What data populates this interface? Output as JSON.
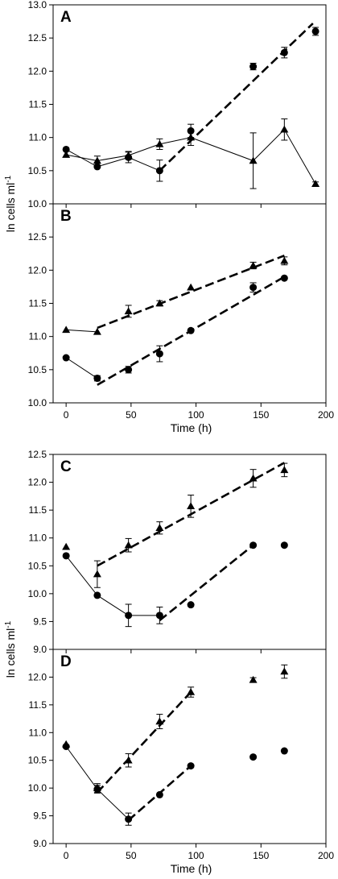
{
  "chart_data": [
    {
      "type": "line",
      "panel": "A",
      "ylabel": "ln cells ml",
      "ylabel_sup": "-1",
      "xlim": [
        -10,
        200
      ],
      "ylim": [
        10.0,
        13.0
      ],
      "yticks": [
        "10.0",
        "10.5",
        "11.0",
        "11.5",
        "12.0",
        "12.5",
        "13.0"
      ],
      "series": [
        {
          "marker": "circle",
          "points": [
            {
              "x": 0,
              "y": 10.82
            },
            {
              "x": 24,
              "y": 10.56
            },
            {
              "x": 48,
              "y": 10.7,
              "err": 0.08
            },
            {
              "x": 72,
              "y": 10.5,
              "err": 0.16
            },
            {
              "x": 96,
              "y": 11.1,
              "err": 0.1
            },
            {
              "x": 144,
              "y": 12.07,
              "err": 0.05
            },
            {
              "x": 168,
              "y": 12.28,
              "err": 0.08
            },
            {
              "x": 192,
              "y": 12.6,
              "err": 0.06
            }
          ],
          "line": "solid",
          "line_points": [
            [
              0,
              10.82
            ],
            [
              24,
              10.56
            ],
            [
              48,
              10.7
            ],
            [
              72,
              10.5
            ]
          ],
          "fit": [
            [
              72,
              10.5
            ],
            [
              190,
              12.72
            ]
          ]
        },
        {
          "marker": "triangle",
          "points": [
            {
              "x": 0,
              "y": 10.74
            },
            {
              "x": 24,
              "y": 10.65,
              "err": 0.07
            },
            {
              "x": 48,
              "y": 10.73,
              "err": 0.06
            },
            {
              "x": 72,
              "y": 10.9,
              "err": 0.08
            },
            {
              "x": 96,
              "y": 11.0,
              "err": 0.12
            },
            {
              "x": 144,
              "y": 10.65,
              "err": 0.42
            },
            {
              "x": 168,
              "y": 11.12,
              "err": 0.16
            },
            {
              "x": 192,
              "y": 10.3,
              "err": 0.03
            }
          ],
          "line": "solid",
          "line_points": [
            [
              0,
              10.74
            ],
            [
              24,
              10.65
            ],
            [
              48,
              10.73
            ],
            [
              72,
              10.9
            ],
            [
              96,
              11.0
            ],
            [
              144,
              10.65
            ],
            [
              168,
              11.12
            ],
            [
              192,
              10.3
            ]
          ]
        }
      ]
    },
    {
      "type": "line",
      "panel": "B",
      "xlabel": "Time (h)",
      "xlim": [
        -10,
        200
      ],
      "ylim": [
        10.0,
        13.0
      ],
      "xticks": [
        "0",
        "50",
        "100",
        "150",
        "200"
      ],
      "yticks": [
        "10.0",
        "10.5",
        "11.0",
        "11.5",
        "12.0",
        "12.5"
      ],
      "series": [
        {
          "marker": "triangle",
          "points": [
            {
              "x": 0,
              "y": 11.1
            },
            {
              "x": 24,
              "y": 11.07
            },
            {
              "x": 48,
              "y": 11.38,
              "err": 0.09
            },
            {
              "x": 72,
              "y": 11.5,
              "err": 0.04
            },
            {
              "x": 96,
              "y": 11.74
            },
            {
              "x": 144,
              "y": 12.07,
              "err": 0.05
            },
            {
              "x": 168,
              "y": 12.14,
              "err": 0.06
            }
          ],
          "line": "solid",
          "line_points": [
            [
              0,
              11.1
            ],
            [
              24,
              11.07
            ]
          ],
          "fit": [
            [
              24,
              11.13
            ],
            [
              168,
              12.22
            ]
          ]
        },
        {
          "marker": "circle",
          "points": [
            {
              "x": 0,
              "y": 10.68
            },
            {
              "x": 24,
              "y": 10.37,
              "err": 0.04
            },
            {
              "x": 48,
              "y": 10.5,
              "err": 0.05
            },
            {
              "x": 72,
              "y": 10.74,
              "err": 0.12
            },
            {
              "x": 96,
              "y": 11.09
            },
            {
              "x": 144,
              "y": 11.74,
              "err": 0.07
            },
            {
              "x": 168,
              "y": 11.88
            }
          ],
          "line": "solid",
          "line_points": [
            [
              0,
              10.68
            ],
            [
              24,
              10.37
            ]
          ],
          "fit": [
            [
              24,
              10.27
            ],
            [
              168,
              11.9
            ]
          ]
        }
      ]
    },
    {
      "type": "line",
      "panel": "C",
      "xlim": [
        -10,
        200
      ],
      "ylim": [
        9.0,
        12.5
      ],
      "yticks": [
        "9.0",
        "9.5",
        "10.0",
        "10.5",
        "11.0",
        "11.5",
        "12.0",
        "12.5"
      ],
      "series": [
        {
          "marker": "triangle",
          "points": [
            {
              "x": 0,
              "y": 10.84
            },
            {
              "x": 24,
              "y": 10.35,
              "err": 0.24
            },
            {
              "x": 48,
              "y": 10.87,
              "err": 0.12
            },
            {
              "x": 72,
              "y": 11.18,
              "err": 0.11
            },
            {
              "x": 96,
              "y": 11.57,
              "err": 0.2
            },
            {
              "x": 144,
              "y": 12.07,
              "err": 0.16
            },
            {
              "x": 168,
              "y": 12.22,
              "err": 0.12
            }
          ],
          "line": "none",
          "fit": [
            [
              24,
              10.5
            ],
            [
              168,
              12.35
            ]
          ]
        },
        {
          "marker": "circle",
          "points": [
            {
              "x": 0,
              "y": 10.68
            },
            {
              "x": 24,
              "y": 9.97
            },
            {
              "x": 48,
              "y": 9.61,
              "err": 0.2
            },
            {
              "x": 72,
              "y": 9.61,
              "err": 0.15
            },
            {
              "x": 96,
              "y": 9.8
            },
            {
              "x": 144,
              "y": 10.87
            },
            {
              "x": 168,
              "y": 10.87
            }
          ],
          "line": "solid",
          "line_points": [
            [
              0,
              10.68
            ],
            [
              24,
              9.97
            ],
            [
              48,
              9.61
            ],
            [
              72,
              9.61
            ]
          ],
          "fit": [
            [
              72,
              9.52
            ],
            [
              144,
              10.87
            ]
          ]
        }
      ]
    },
    {
      "type": "line",
      "panel": "D",
      "ylabel": "ln cells ml",
      "ylabel_sup": "-1",
      "xlabel": "Time (h)",
      "xlim": [
        -10,
        200
      ],
      "ylim": [
        9.0,
        12.5
      ],
      "xticks": [
        "0",
        "50",
        "100",
        "150",
        "200"
      ],
      "yticks": [
        "9.0",
        "9.5",
        "10.0",
        "10.5",
        "11.0",
        "11.5",
        "12.0"
      ],
      "series": [
        {
          "marker": "triangle",
          "points": [
            {
              "x": 0,
              "y": 10.79
            },
            {
              "x": 24,
              "y": 10.0,
              "err": 0.08
            },
            {
              "x": 48,
              "y": 10.5,
              "err": 0.12
            },
            {
              "x": 72,
              "y": 11.2,
              "err": 0.13
            },
            {
              "x": 96,
              "y": 11.73,
              "err": 0.09
            },
            {
              "x": 144,
              "y": 11.95,
              "err": 0.04
            },
            {
              "x": 168,
              "y": 12.1,
              "err": 0.12
            }
          ],
          "line": "none",
          "fit": [
            [
              24,
              9.92
            ],
            [
              96,
              11.73
            ]
          ]
        },
        {
          "marker": "circle",
          "points": [
            {
              "x": 0,
              "y": 10.75
            },
            {
              "x": 24,
              "y": 9.98,
              "err": 0.07
            },
            {
              "x": 48,
              "y": 9.44,
              "err": 0.11
            },
            {
              "x": 72,
              "y": 9.88
            },
            {
              "x": 96,
              "y": 10.4
            },
            {
              "x": 144,
              "y": 10.56
            },
            {
              "x": 168,
              "y": 10.67
            }
          ],
          "line": "solid",
          "line_points": [
            [
              0,
              10.75
            ],
            [
              24,
              9.98
            ],
            [
              48,
              9.44
            ]
          ],
          "fit": [
            [
              48,
              9.42
            ],
            [
              96,
              10.4
            ]
          ]
        }
      ]
    }
  ]
}
